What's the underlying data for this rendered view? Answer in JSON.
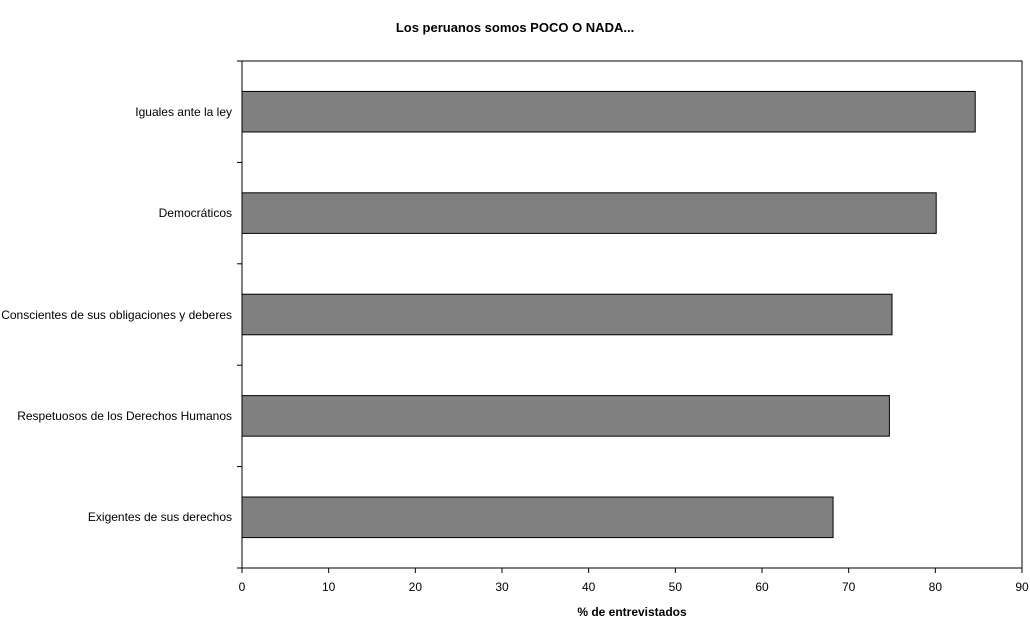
{
  "chart_data": {
    "type": "bar",
    "orientation": "horizontal",
    "title": "Los peruanos somos POCO O NADA...",
    "xlabel": "% de entrevistados",
    "ylabel": "",
    "categories": [
      "Iguales ante la ley",
      "Democráticos",
      "Conscientes de sus obligaciones y deberes",
      "Respetuosos de los Derechos Humanos",
      "Exigentes de sus derechos"
    ],
    "values": [
      84.6,
      80.1,
      75.0,
      74.7,
      68.2
    ],
    "xlim": [
      0,
      90
    ],
    "xticks": [
      0,
      10,
      20,
      30,
      40,
      50,
      60,
      70,
      80,
      90
    ],
    "bar_color": "#808080",
    "grid": false,
    "legend": "none"
  }
}
